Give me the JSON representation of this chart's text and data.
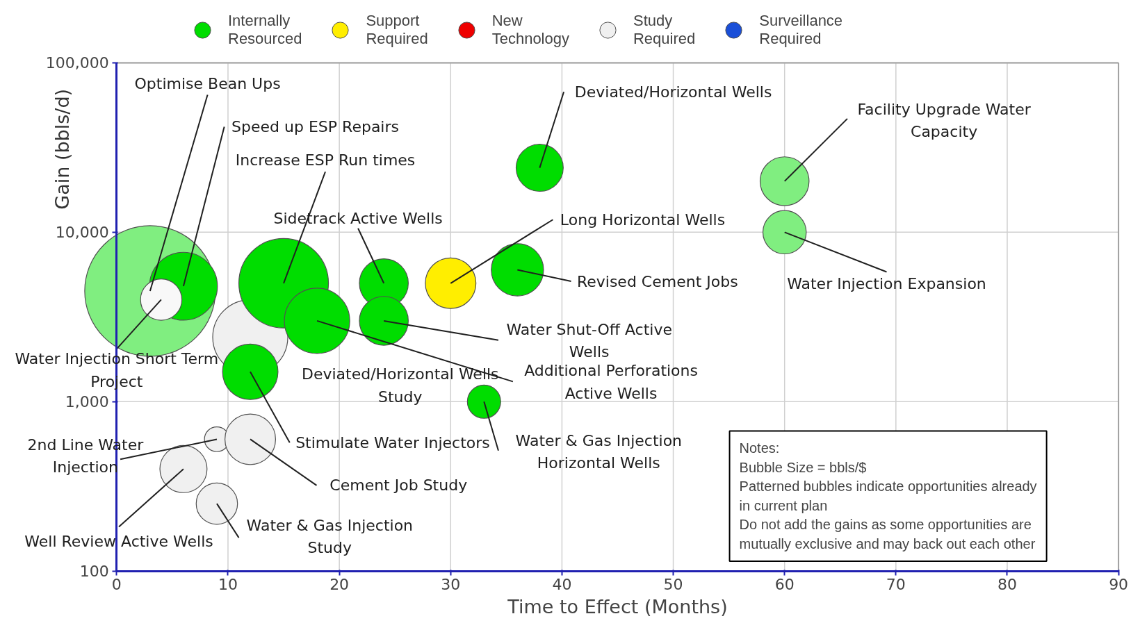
{
  "chart_data": {
    "type": "bubble",
    "xlabel": "Time to Effect (Months)",
    "ylabel": "Gain (bbls/d)",
    "log": "y",
    "xlim": [
      0,
      90
    ],
    "xticks": [
      0,
      10,
      20,
      30,
      40,
      50,
      60,
      70,
      80,
      90
    ],
    "ylim": [
      100,
      100000
    ],
    "yticks": [
      {
        "value": 100,
        "label": "100"
      },
      {
        "value": 1000,
        "label": "1,000"
      },
      {
        "value": 10000,
        "label": "10,000"
      },
      {
        "value": 100000,
        "label": "100,000"
      }
    ],
    "grid": true,
    "legend": "top",
    "series": [
      {
        "color": "#80ee80",
        "x": [
          3,
          60,
          60
        ],
        "values": [
          4500,
          20000,
          10000
        ],
        "sizes": [
          1,
          0.14,
          0.11
        ]
      },
      {
        "name": "Study Required",
        "color": "#f0f0f0",
        "x": [
          12,
          9,
          12,
          6,
          9
        ],
        "values": [
          2400,
          600,
          600,
          400,
          250
        ],
        "sizes": [
          0.33,
          0.036,
          0.15,
          0.13,
          0.1
        ]
      },
      {
        "name": "Internally Resourced",
        "color": "#00dd00",
        "x": [
          15,
          6,
          18,
          24,
          24,
          36,
          38,
          12,
          33
        ],
        "values": [
          5000,
          4800,
          3000,
          5000,
          3000,
          6000,
          24000,
          1500,
          1000
        ],
        "sizes": [
          0.47,
          0.27,
          0.25,
          0.14,
          0.14,
          0.16,
          0.13,
          0.18,
          0.065
        ]
      },
      {
        "name": "Support Required",
        "color": "#ffee00",
        "x": [
          30
        ],
        "values": [
          5000
        ],
        "sizes": [
          0.15
        ]
      },
      {
        "name": "New Technology",
        "color": "#ee0000"
      },
      {
        "color": "#f8f8f8",
        "x": [
          4
        ],
        "values": [
          4000
        ],
        "sizes": [
          0.1
        ]
      },
      {
        "name": "Surveillance Required",
        "color": "#1a4fd8"
      }
    ],
    "annotations": [
      {
        "text": "Optimise Bean Ups",
        "x": 3,
        "y": 4500
      },
      {
        "text": "Speed up ESP Repairs",
        "x": 6,
        "y": 4800
      },
      {
        "text": "Increase ESP Run times",
        "x": 15,
        "y": 5000
      },
      {
        "text": "Sidetrack Active Wells",
        "x": 24,
        "y": 5000
      },
      {
        "text": "Deviated/Horizontal Wells",
        "x": 38,
        "y": 24000
      },
      {
        "text": "Facility Upgrade Water Capacity",
        "x": 60,
        "y": 20000
      },
      {
        "text": "Long Horizontal Wells",
        "x": 30,
        "y": 5000
      },
      {
        "text": "Water Injection Expansion",
        "x": 60,
        "y": 10000
      },
      {
        "text": "Revised Cement Jobs",
        "x": 36,
        "y": 6000
      },
      {
        "text": "Water Shut-Off Active Wells",
        "x": 24,
        "y": 3000
      },
      {
        "text": "Additional Perforations Active Wells",
        "x": 18,
        "y": 3000
      },
      {
        "text": "Water & Gas Injection Horizontal Wells",
        "x": 33,
        "y": 1000
      },
      {
        "text": "Stimulate Water Injectors",
        "x": 12,
        "y": 1500
      },
      {
        "text": "Cement Job Study",
        "x": 12,
        "y": 600
      },
      {
        "text": "Water & Gas Injection Study",
        "x": 9,
        "y": 250
      },
      {
        "text": "Well Review Active Wells",
        "x": 6,
        "y": 400
      },
      {
        "text": "2nd Line Water Injection",
        "x": 9,
        "y": 600
      },
      {
        "text": "Water Injection Short Term Project",
        "x": 4,
        "y": 4000
      },
      "Deviated/Horizontal Wells Study",
      "Notes:",
      "Bubble Size = bbls/$",
      "Patterned bubbles indicate opportunities already in current plan",
      "Do not add the gains as some opportunities are mutually exclusive and may back out each other"
    ]
  }
}
